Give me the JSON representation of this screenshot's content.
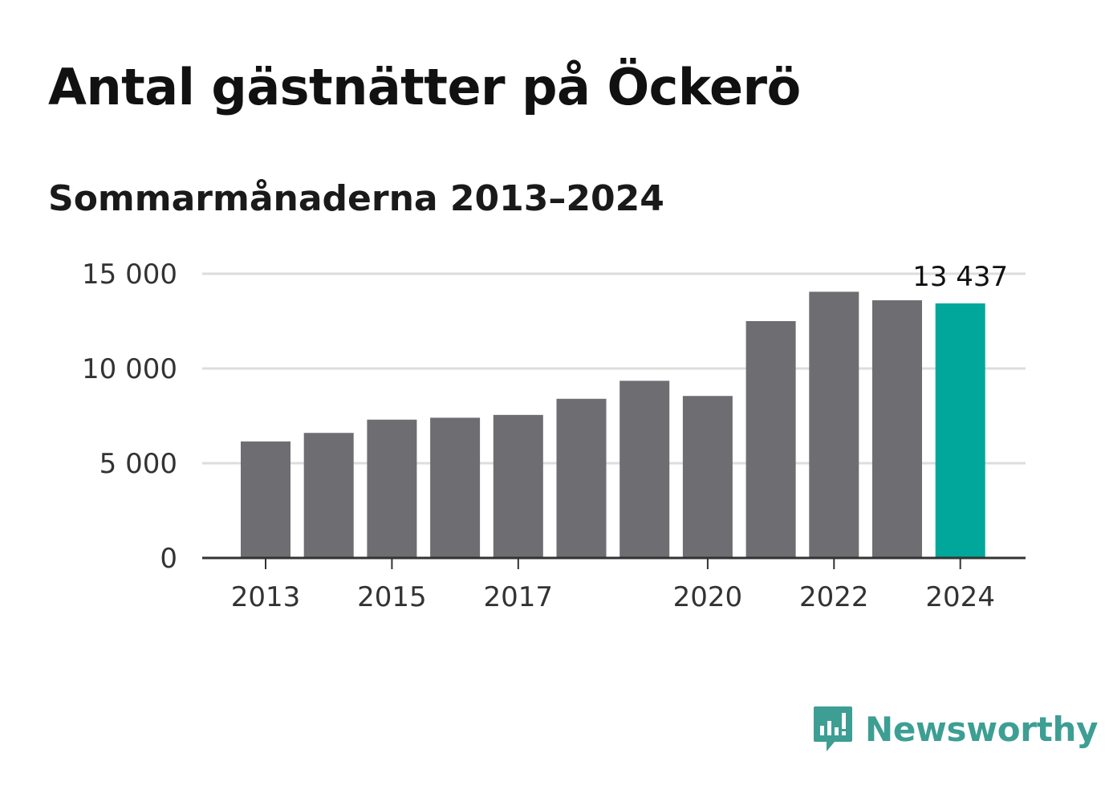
{
  "title": "Antal gästnätter på Öckerö",
  "subtitle": "Sommarmånaderna 2013–2024",
  "chart_data": {
    "type": "bar",
    "categories": [
      "2013",
      "2014",
      "2015",
      "2016",
      "2017",
      "2018",
      "2019",
      "2020",
      "2021",
      "2022",
      "2023",
      "2024"
    ],
    "values": [
      6150,
      6600,
      7300,
      7400,
      7550,
      8400,
      9350,
      8550,
      12500,
      14050,
      13600,
      13437
    ],
    "xtick_labels": [
      "2013",
      "2015",
      "2017",
      "2020",
      "2022",
      "2024"
    ],
    "yticks": [
      0,
      5000,
      10000,
      15000
    ],
    "ytick_labels": [
      "0",
      "5 000",
      "10 000",
      "15 000"
    ],
    "ylim": [
      0,
      15000
    ],
    "highlight_category": "2024",
    "highlight_label": "13 437",
    "bar_color": "#6e6d72",
    "highlight_color": "#00a79a",
    "grid": true,
    "xlabel": "",
    "ylabel": ""
  },
  "logo": {
    "text": "Newsworthy",
    "color": "#3d9e94"
  }
}
